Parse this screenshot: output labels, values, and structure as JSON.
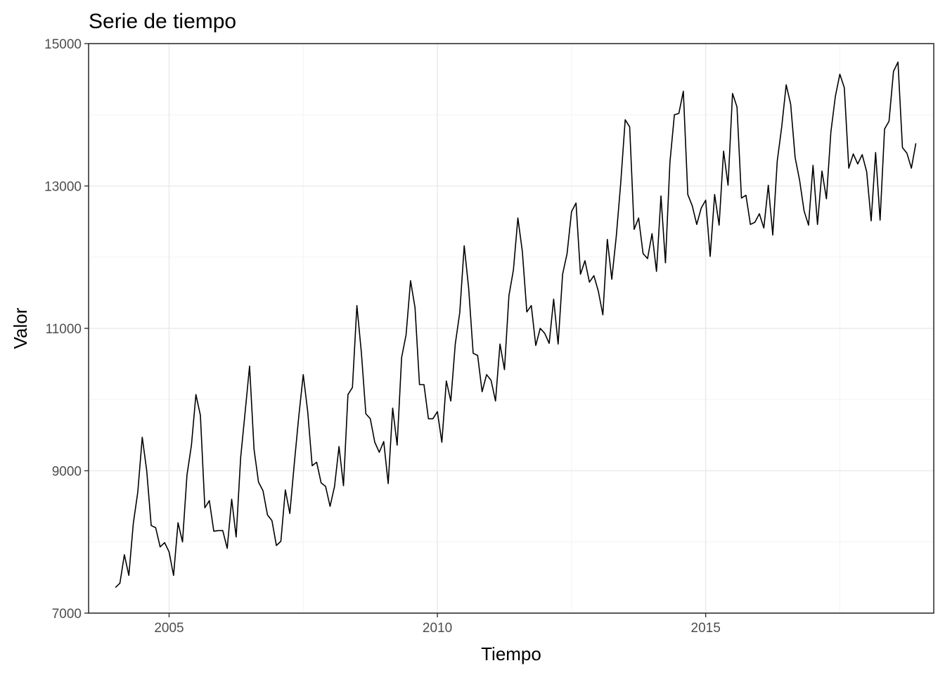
{
  "chart_data": {
    "type": "line",
    "title": "Serie de tiempo",
    "xlabel": "Tiempo",
    "ylabel": "Valor",
    "xlim": [
      2003.5,
      2019.25
    ],
    "ylim": [
      7000,
      15000
    ],
    "x_ticks": [
      2005,
      2010,
      2015
    ],
    "x_tick_labels": [
      "2005",
      "2010",
      "2015"
    ],
    "y_ticks": [
      7000,
      9000,
      11000,
      13000,
      15000
    ],
    "y_tick_labels": [
      "7000",
      "9000",
      "11000",
      "13000",
      "15000"
    ],
    "grid": true,
    "legend": "none",
    "series": [
      {
        "start": 2004,
        "frequency": 12,
        "values": [
          7360,
          7420,
          7820,
          7530,
          8260,
          8700,
          9470,
          9000,
          8230,
          8200,
          7930,
          7990,
          7860,
          7530,
          8270,
          8000,
          8940,
          9360,
          10070,
          9780,
          8480,
          8580,
          8150,
          8160,
          8160,
          7910,
          8600,
          8070,
          9180,
          9820,
          10470,
          9300,
          8840,
          8720,
          8380,
          8300,
          7950,
          8010,
          8730,
          8400,
          9100,
          9760,
          10350,
          9830,
          9070,
          9120,
          8830,
          8780,
          8500,
          8780,
          9340,
          8790,
          10070,
          10170,
          11320,
          10660,
          9800,
          9730,
          9400,
          9260,
          9410,
          8820,
          9880,
          9360,
          10590,
          10910,
          11670,
          11290,
          10210,
          10210,
          9730,
          9730,
          9830,
          9400,
          10260,
          9980,
          10780,
          11220,
          12160,
          11560,
          10650,
          10620,
          10110,
          10350,
          10270,
          9980,
          10780,
          10420,
          11460,
          11820,
          12550,
          12080,
          11230,
          11320,
          10760,
          11000,
          10930,
          10790,
          11410,
          10780,
          11760,
          12050,
          12640,
          12760,
          11760,
          11950,
          11650,
          11740,
          11520,
          11190,
          12250,
          11690,
          12290,
          13040,
          13930,
          13830,
          12390,
          12550,
          12050,
          11980,
          12330,
          11800,
          12860,
          11920,
          13330,
          14000,
          14020,
          14330,
          12880,
          12720,
          12460,
          12690,
          12800,
          12010,
          12880,
          12450,
          13490,
          13010,
          14300,
          14110,
          12830,
          12870,
          12460,
          12490,
          12610,
          12410,
          13010,
          12310,
          13350,
          13830,
          14420,
          14150,
          13400,
          13080,
          12650,
          12450,
          13290,
          12460,
          13210,
          12820,
          13760,
          14260,
          14570,
          14380,
          13250,
          13450,
          13310,
          13440,
          13200,
          12510,
          13470,
          12520,
          13800,
          13910,
          14610,
          14740,
          13540,
          13460,
          13250,
          13600
        ]
      }
    ]
  }
}
